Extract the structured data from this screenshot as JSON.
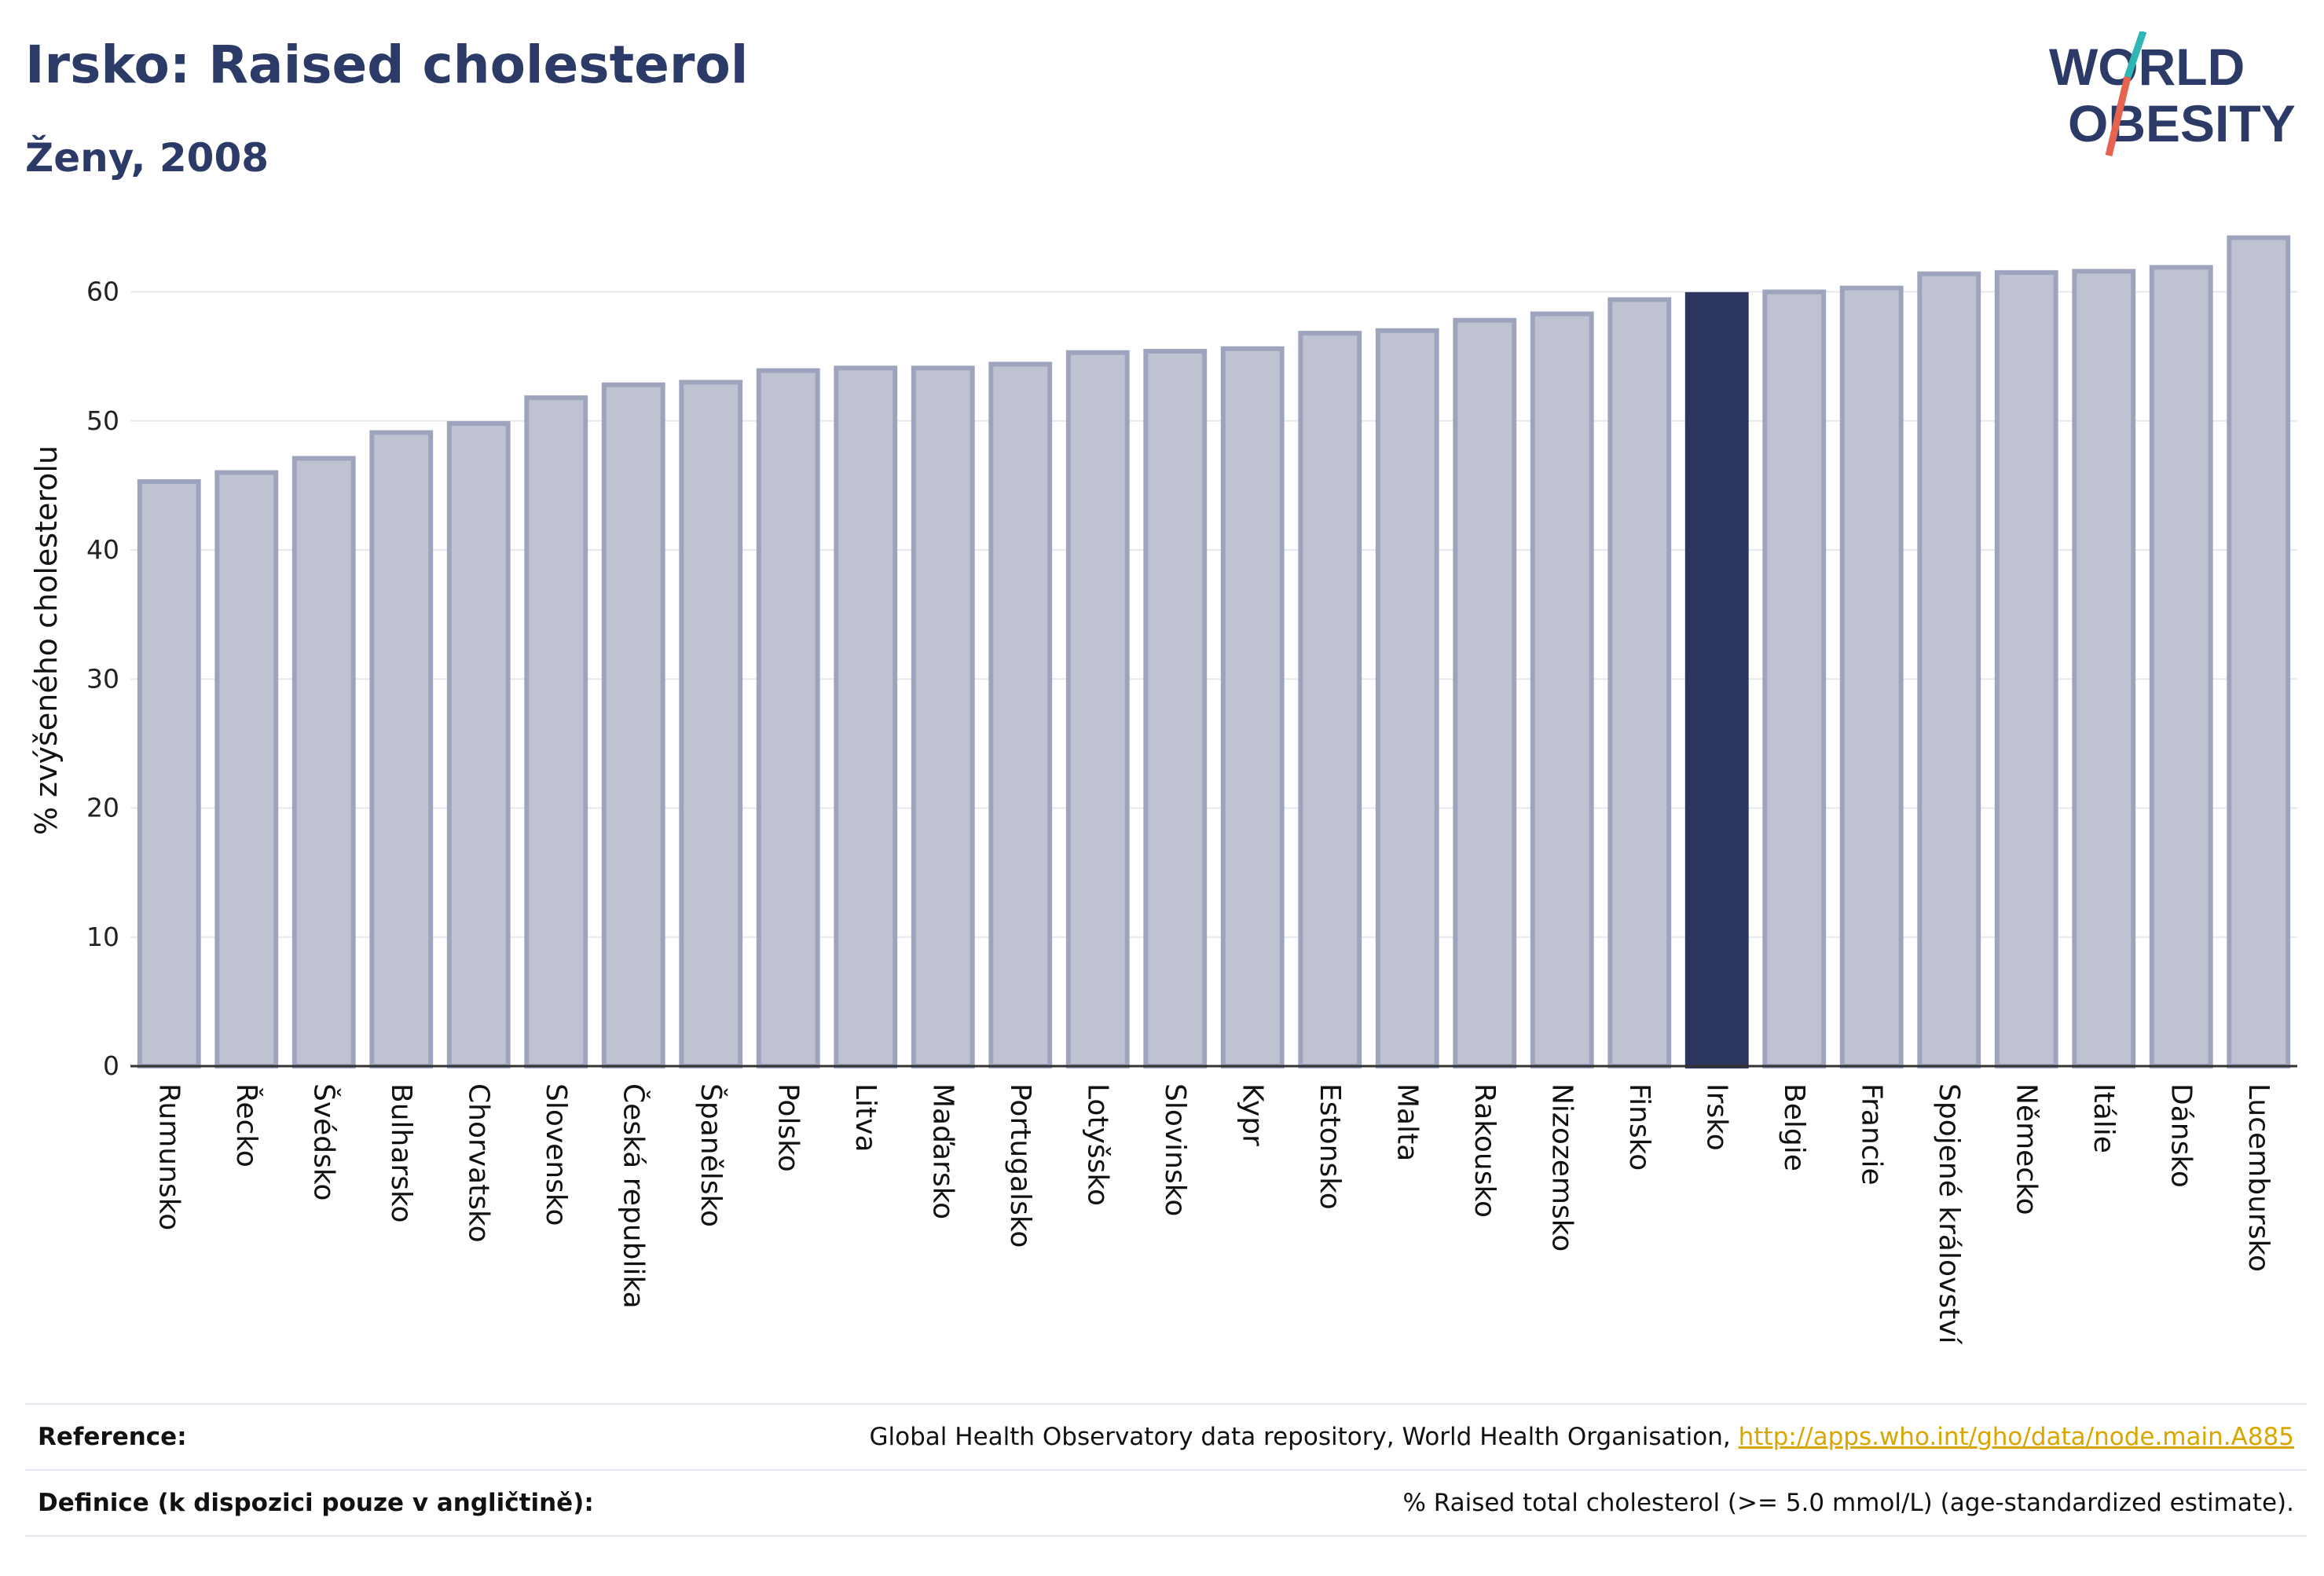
{
  "header": {
    "title": "Irsko: Raised cholesterol",
    "subtitle": "Ženy, 2008"
  },
  "logo": {
    "line1": "WORLD",
    "line2": "OBESITY"
  },
  "colors": {
    "bar": "#bfc3d1",
    "bar_border": "#9ea4bd",
    "highlight": "#2b3560",
    "title": "#2b3a67"
  },
  "chart_data": {
    "type": "bar",
    "ylabel": "% zvýšeného cholesterolu",
    "ylim": [
      0,
      66
    ],
    "yticks": [
      0,
      10,
      20,
      30,
      40,
      50,
      60
    ],
    "grid": true,
    "highlight": "Irsko",
    "categories": [
      "Rumunsko",
      "Řecko",
      "Švédsko",
      "Bulharsko",
      "Chorvatsko",
      "Slovensko",
      "Česká republika",
      "Španělsko",
      "Polsko",
      "Litva",
      "Maďarsko",
      "Portugalsko",
      "Lotyšsko",
      "Slovinsko",
      "Kypr",
      "Estonsko",
      "Malta",
      "Rakousko",
      "Nizozemsko",
      "Finsko",
      "Irsko",
      "Belgie",
      "Francie",
      "Spojené království",
      "Německo",
      "Itálie",
      "Dánsko",
      "Lucembursko"
    ],
    "values": [
      45.3,
      46.0,
      47.1,
      49.1,
      49.8,
      51.8,
      52.8,
      53.0,
      53.9,
      54.1,
      54.1,
      54.4,
      55.3,
      55.4,
      55.6,
      56.8,
      57.0,
      57.8,
      58.3,
      59.4,
      59.8,
      60.0,
      60.3,
      61.4,
      61.5,
      61.6,
      61.9,
      64.2
    ]
  },
  "references": {
    "reference_label": "Reference:",
    "reference_text": "Global Health Observatory data repository, World Health Organisation,",
    "reference_link": "http://apps.who.int/gho/data/node.main.A885",
    "definition_label": "Definice (k dispozici pouze v angličtině):",
    "definition_text": "% Raised total cholesterol (>= 5.0 mmol/L) (age-standardized estimate)."
  }
}
